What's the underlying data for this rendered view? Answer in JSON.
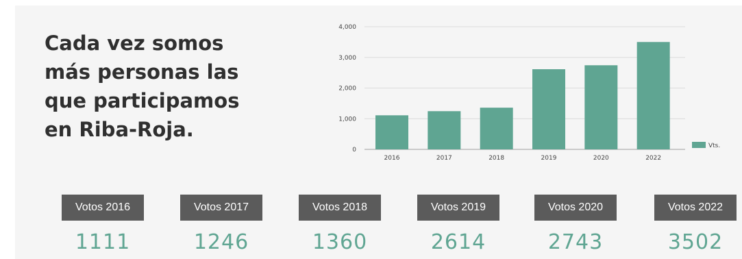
{
  "headline": {
    "lines": [
      "Cada vez somos",
      "más personas las",
      "que participamos",
      "en Riba-Roja."
    ]
  },
  "chart_data": {
    "type": "bar",
    "categories": [
      "2016",
      "2017",
      "2018",
      "2019",
      "2020",
      "2022"
    ],
    "series": [
      {
        "name": "Vts.",
        "values": [
          1111,
          1246,
          1360,
          2614,
          2743,
          3502
        ]
      }
    ],
    "ylim": [
      0,
      4000
    ],
    "yticks": [
      0,
      1000,
      2000,
      3000,
      4000
    ],
    "ytick_labels": [
      "0",
      "1,000",
      "2,000",
      "3,000",
      "4,000"
    ],
    "grid": true,
    "legend": "right",
    "color": "#5fa592"
  },
  "stats": [
    {
      "label": "Votos 2016",
      "value": "1111"
    },
    {
      "label": "Votos 2017",
      "value": "1246"
    },
    {
      "label": "Votos 2018",
      "value": "1360"
    },
    {
      "label": "Votos 2019",
      "value": "2614"
    },
    {
      "label": "Votos 2020",
      "value": "2743"
    },
    {
      "label": "Votos 2022",
      "value": "3502"
    }
  ],
  "colors": {
    "label_bg": "#5b5b5b",
    "value_text": "#5fa592",
    "headline": "#2f2f2f"
  }
}
